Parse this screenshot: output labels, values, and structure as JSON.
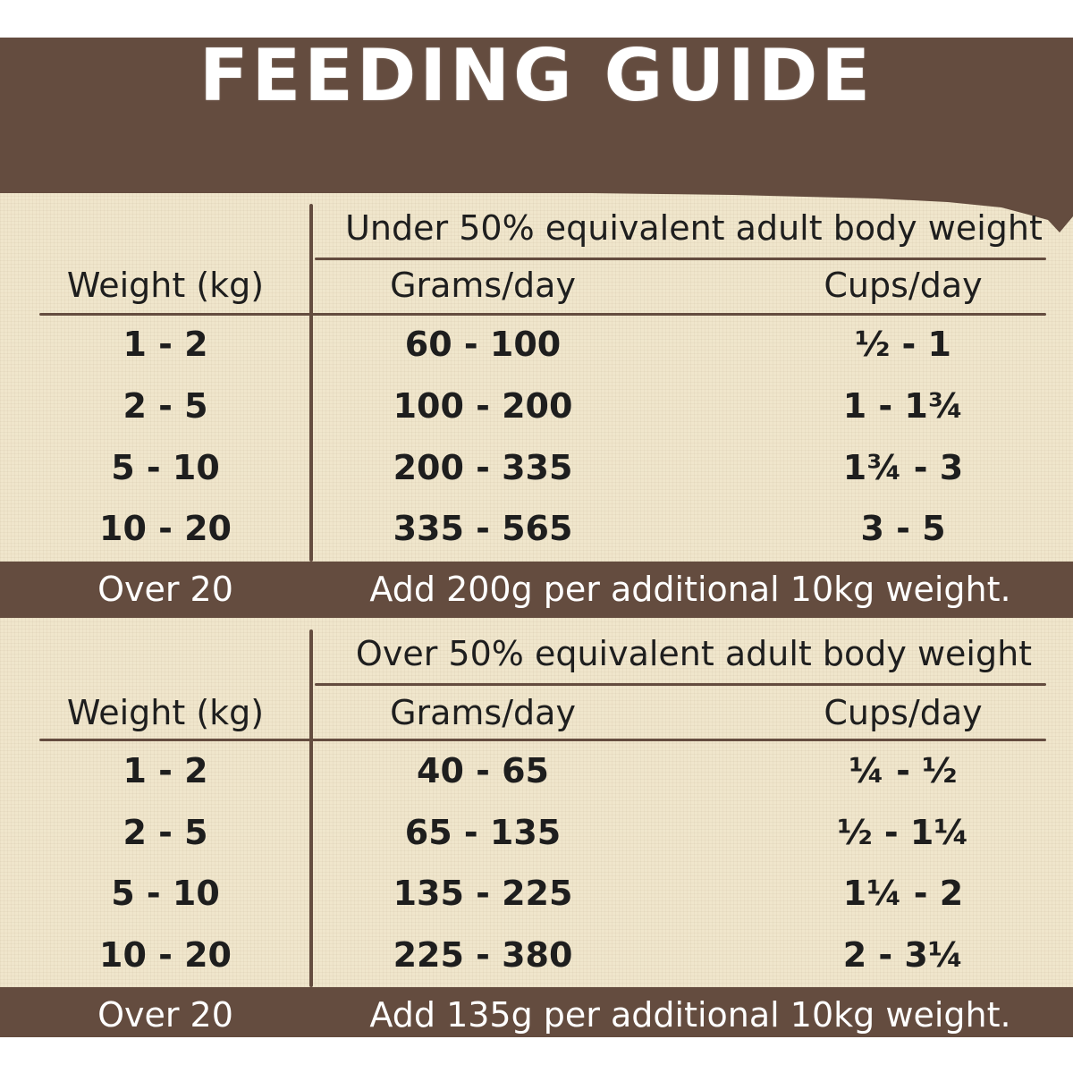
{
  "title": "FEEDING GUIDE",
  "sections": [
    {
      "heading": "Under 50% equivalent adult body weight",
      "col_weight": "Weight (kg)",
      "col_grams": "Grams/day",
      "col_cups": "Cups/day",
      "rows": [
        {
          "weight": "1 - 2",
          "grams": "60 - 100",
          "cups": "½ - 1"
        },
        {
          "weight": "2 - 5",
          "grams": "100 - 200",
          "cups": "1 - 1¾"
        },
        {
          "weight": "5 - 10",
          "grams": "200 - 335",
          "cups": "1¾ - 3"
        },
        {
          "weight": "10 - 20",
          "grams": "335 - 565",
          "cups": "3 - 5"
        }
      ],
      "over_label": "Over 20",
      "over_note": "Add 200g per additional 10kg weight."
    },
    {
      "heading": "Over 50% equivalent adult body weight",
      "col_weight": "Weight (kg)",
      "col_grams": "Grams/day",
      "col_cups": "Cups/day",
      "rows": [
        {
          "weight": "1 - 2",
          "grams": "40 - 65",
          "cups": "¼ - ½"
        },
        {
          "weight": "2 - 5",
          "grams": "65 - 135",
          "cups": "½ - 1¼"
        },
        {
          "weight": "5 - 10",
          "grams": "135 - 225",
          "cups": "1¼ - 2"
        },
        {
          "weight": "10 - 20",
          "grams": "225 - 380",
          "cups": "2 - 3¼"
        }
      ],
      "over_label": "Over 20",
      "over_note": "Add 135g per additional 10kg weight."
    }
  ],
  "colors": {
    "brand_brown": "#644c3f",
    "background_cream": "#f0e6cc",
    "text_dark": "#1e1e1e"
  }
}
